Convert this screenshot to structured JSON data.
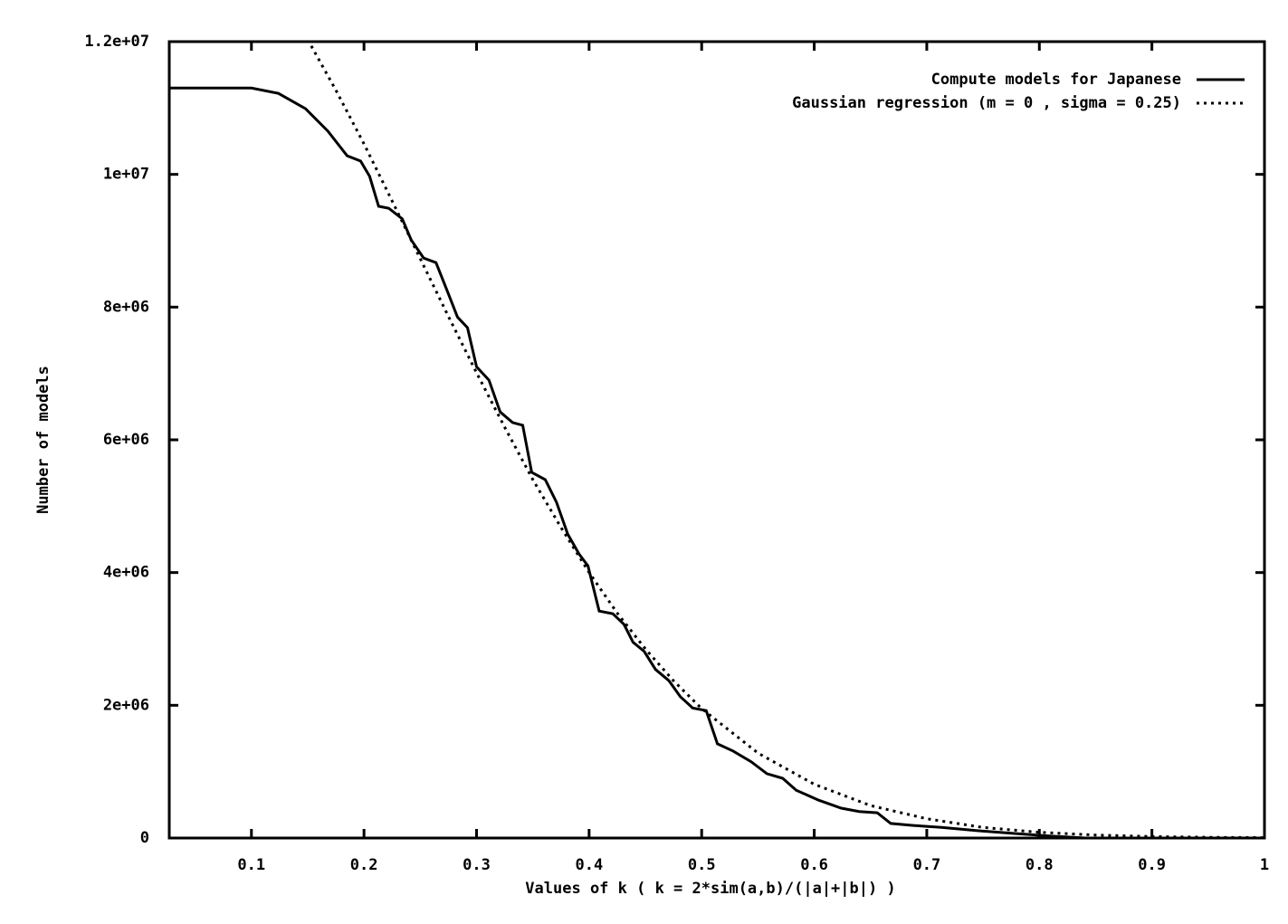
{
  "chart_data": {
    "type": "line",
    "xlabel": "Values of k ( k = 2*sim(a,b)/(|a|+|b|) )",
    "ylabel": "Number of models",
    "xlim": [
      0.027,
      1
    ],
    "ylim": [
      0,
      12000000
    ],
    "xticks": [
      0.1,
      0.2,
      0.3,
      0.4,
      0.5,
      0.6,
      0.7,
      0.8,
      0.9,
      1
    ],
    "yticks": [
      0,
      {
        "value": 2000000,
        "label": "2e+06"
      },
      {
        "value": 4000000,
        "label": "4e+06"
      },
      {
        "value": 6000000,
        "label": "6e+06"
      },
      {
        "value": 8000000,
        "label": "8e+06"
      },
      {
        "value": 10000000,
        "label": "1e+07"
      },
      {
        "value": 12000000,
        "label": "1.2e+07"
      }
    ],
    "grid": false,
    "legend": "top-right",
    "series": [
      {
        "name": "Compute models for Japanese",
        "color": "#000000",
        "style": "solid",
        "x": [
          0.027,
          0.1,
          0.124,
          0.148,
          0.168,
          0.185,
          0.197,
          0.205,
          0.213,
          0.222,
          0.234,
          0.242,
          0.253,
          0.264,
          0.275,
          0.283,
          0.292,
          0.3,
          0.311,
          0.321,
          0.332,
          0.341,
          0.349,
          0.361,
          0.371,
          0.381,
          0.391,
          0.399,
          0.409,
          0.421,
          0.431,
          0.439,
          0.449,
          0.459,
          0.471,
          0.481,
          0.492,
          0.504,
          0.514,
          0.528,
          0.544,
          0.558,
          0.572,
          0.584,
          0.604,
          0.624,
          0.64,
          0.656,
          0.668,
          0.688,
          0.713,
          0.745,
          0.777,
          0.809,
          0.841,
          1
        ],
        "values": [
          11300000,
          11300000,
          11220000,
          10990000,
          10650000,
          10280000,
          10200000,
          9970000,
          9520000,
          9490000,
          9330000,
          9010000,
          8740000,
          8670000,
          8200000,
          7850000,
          7690000,
          7100000,
          6900000,
          6420000,
          6260000,
          6220000,
          5510000,
          5400000,
          5060000,
          4580000,
          4280000,
          4100000,
          3420000,
          3380000,
          3220000,
          2950000,
          2810000,
          2540000,
          2370000,
          2130000,
          1960000,
          1920000,
          1420000,
          1310000,
          1150000,
          970000,
          900000,
          720000,
          570000,
          450000,
          400000,
          380000,
          220000,
          190000,
          160000,
          110000,
          70000,
          30000,
          0,
          0
        ]
      },
      {
        "name": "Gaussian regression (m = 0 , sigma = 0.25)",
        "color": "#000000",
        "style": "dotted",
        "x": [
          0.15,
          0.175,
          0.2,
          0.225,
          0.25,
          0.275,
          0.3,
          0.325,
          0.35,
          0.375,
          0.4,
          0.425,
          0.45,
          0.475,
          0.5,
          0.55,
          0.6,
          0.65,
          0.7,
          0.75,
          0.8,
          0.85,
          0.9,
          0.95,
          1
        ],
        "values": [
          12030000,
          11270000,
          10460000,
          9600000,
          8730000,
          7860000,
          7010000,
          6190000,
          5400000,
          4680000,
          4000000,
          3390000,
          2850000,
          2370000,
          1950000,
          1280000,
          810000,
          490000,
          290000,
          160000,
          86000,
          45000,
          22000,
          10500,
          4800
        ]
      }
    ]
  }
}
